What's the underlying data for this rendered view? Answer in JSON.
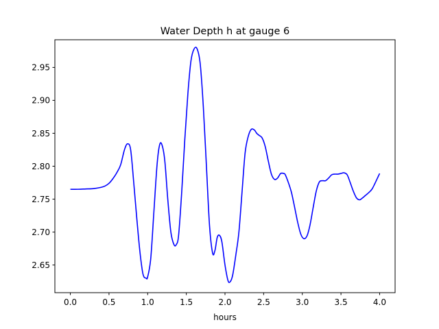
{
  "chart_data": {
    "type": "line",
    "title": "Water Depth h at gauge 6",
    "xlabel": "hours",
    "ylabel": "",
    "xlim": [
      -0.2,
      4.2
    ],
    "ylim": [
      2.608,
      2.992
    ],
    "xticks": [
      0.0,
      0.5,
      1.0,
      1.5,
      2.0,
      2.5,
      3.0,
      3.5,
      4.0
    ],
    "xtick_labels": [
      "0.0",
      "0.5",
      "1.0",
      "1.5",
      "2.0",
      "2.5",
      "3.0",
      "3.5",
      "4.0"
    ],
    "yticks": [
      2.65,
      2.7,
      2.75,
      2.8,
      2.85,
      2.9,
      2.95
    ],
    "ytick_labels": [
      "2.65",
      "2.70",
      "2.75",
      "2.80",
      "2.85",
      "2.90",
      "2.95"
    ],
    "grid": false,
    "series": [
      {
        "color": "#0000ff",
        "x": [
          0.0,
          0.1,
          0.2,
          0.3,
          0.4,
          0.45,
          0.5,
          0.55,
          0.6,
          0.65,
          0.7,
          0.74,
          0.78,
          0.82,
          0.86,
          0.9,
          0.94,
          0.98,
          1.0,
          1.04,
          1.08,
          1.12,
          1.15,
          1.18,
          1.22,
          1.26,
          1.3,
          1.34,
          1.37,
          1.4,
          1.44,
          1.48,
          1.52,
          1.56,
          1.6,
          1.64,
          1.68,
          1.72,
          1.76,
          1.8,
          1.84,
          1.87,
          1.9,
          1.93,
          1.96,
          2.0,
          2.04,
          2.07,
          2.1,
          2.14,
          2.18,
          2.22,
          2.26,
          2.3,
          2.34,
          2.38,
          2.41,
          2.44,
          2.48,
          2.52,
          2.56,
          2.6,
          2.64,
          2.68,
          2.72,
          2.76,
          2.78,
          2.82,
          2.86,
          2.9,
          2.94,
          2.98,
          3.02,
          3.06,
          3.1,
          3.14,
          3.18,
          3.22,
          3.26,
          3.3,
          3.34,
          3.38,
          3.42,
          3.46,
          3.5,
          3.54,
          3.58,
          3.62,
          3.66,
          3.7,
          3.74,
          3.78,
          3.82,
          3.86,
          3.9,
          3.94,
          3.98,
          4.0
        ],
        "y": [
          2.765,
          2.765,
          2.7655,
          2.766,
          2.768,
          2.77,
          2.774,
          2.781,
          2.79,
          2.802,
          2.825,
          2.834,
          2.825,
          2.775,
          2.72,
          2.67,
          2.636,
          2.63,
          2.632,
          2.66,
          2.73,
          2.8,
          2.83,
          2.834,
          2.81,
          2.75,
          2.7,
          2.681,
          2.681,
          2.695,
          2.76,
          2.84,
          2.91,
          2.96,
          2.978,
          2.978,
          2.955,
          2.89,
          2.8,
          2.71,
          2.668,
          2.672,
          2.692,
          2.695,
          2.685,
          2.65,
          2.626,
          2.625,
          2.635,
          2.665,
          2.7,
          2.76,
          2.82,
          2.845,
          2.856,
          2.855,
          2.85,
          2.847,
          2.843,
          2.83,
          2.808,
          2.788,
          2.78,
          2.782,
          2.789,
          2.789,
          2.787,
          2.775,
          2.76,
          2.738,
          2.715,
          2.697,
          2.69,
          2.694,
          2.711,
          2.737,
          2.762,
          2.776,
          2.778,
          2.778,
          2.782,
          2.787,
          2.788,
          2.788,
          2.789,
          2.79,
          2.787,
          2.775,
          2.762,
          2.752,
          2.749,
          2.752,
          2.756,
          2.76,
          2.765,
          2.774,
          2.784,
          2.789
        ]
      }
    ]
  }
}
